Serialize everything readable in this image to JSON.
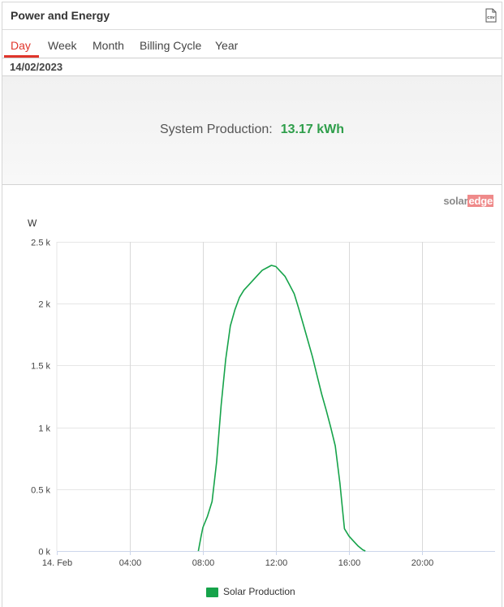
{
  "header": {
    "title": "Power and Energy",
    "csv_icon": "csv-file-icon",
    "csv_icon_text": "CSV"
  },
  "tabs": [
    {
      "label": "Day",
      "active": true
    },
    {
      "label": "Week",
      "active": false
    },
    {
      "label": "Month",
      "active": false
    },
    {
      "label": "Billing Cycle",
      "active": false
    },
    {
      "label": "Year",
      "active": false
    }
  ],
  "date": "14/02/2023",
  "summary": {
    "label": "System Production:",
    "value": "13.17 kWh"
  },
  "logo": {
    "part1": "solar",
    "part2": "edge"
  },
  "colors": {
    "accent": "#e0352b",
    "production": "#16a34a"
  },
  "chart_data": {
    "type": "line",
    "ylabel": "W",
    "xlim": [
      0,
      24
    ],
    "ylim": [
      0,
      2500
    ],
    "x_ticks": [
      {
        "value": 0,
        "label": "14. Feb"
      },
      {
        "value": 4,
        "label": "04:00"
      },
      {
        "value": 8,
        "label": "08:00"
      },
      {
        "value": 12,
        "label": "12:00"
      },
      {
        "value": 16,
        "label": "16:00"
      },
      {
        "value": 20,
        "label": "20:00"
      }
    ],
    "y_ticks": [
      {
        "value": 0,
        "label": "0 k"
      },
      {
        "value": 500,
        "label": "0.5 k"
      },
      {
        "value": 1000,
        "label": "1 k"
      },
      {
        "value": 1500,
        "label": "1.5 k"
      },
      {
        "value": 2000,
        "label": "2 k"
      },
      {
        "value": 2500,
        "label": "2.5 k"
      }
    ],
    "grid": true,
    "legend_position": "bottom-center",
    "series": [
      {
        "name": "Solar Production",
        "color": "#16a34a",
        "points": [
          [
            7.75,
            0
          ],
          [
            7.9,
            120
          ],
          [
            8.0,
            190
          ],
          [
            8.25,
            280
          ],
          [
            8.5,
            400
          ],
          [
            8.75,
            720
          ],
          [
            9.0,
            1180
          ],
          [
            9.25,
            1550
          ],
          [
            9.5,
            1820
          ],
          [
            9.75,
            1950
          ],
          [
            10.0,
            2050
          ],
          [
            10.25,
            2110
          ],
          [
            10.5,
            2150
          ],
          [
            10.75,
            2190
          ],
          [
            11.0,
            2230
          ],
          [
            11.25,
            2270
          ],
          [
            11.5,
            2290
          ],
          [
            11.75,
            2310
          ],
          [
            12.0,
            2300
          ],
          [
            12.25,
            2260
          ],
          [
            12.5,
            2220
          ],
          [
            12.75,
            2150
          ],
          [
            13.0,
            2080
          ],
          [
            13.25,
            1960
          ],
          [
            13.5,
            1830
          ],
          [
            13.75,
            1700
          ],
          [
            14.0,
            1570
          ],
          [
            14.25,
            1420
          ],
          [
            14.5,
            1270
          ],
          [
            14.75,
            1140
          ],
          [
            15.0,
            1000
          ],
          [
            15.25,
            850
          ],
          [
            15.5,
            550
          ],
          [
            15.75,
            180
          ],
          [
            16.0,
            120
          ],
          [
            16.25,
            80
          ],
          [
            16.5,
            40
          ],
          [
            16.75,
            10
          ],
          [
            16.9,
            0
          ]
        ]
      }
    ]
  }
}
